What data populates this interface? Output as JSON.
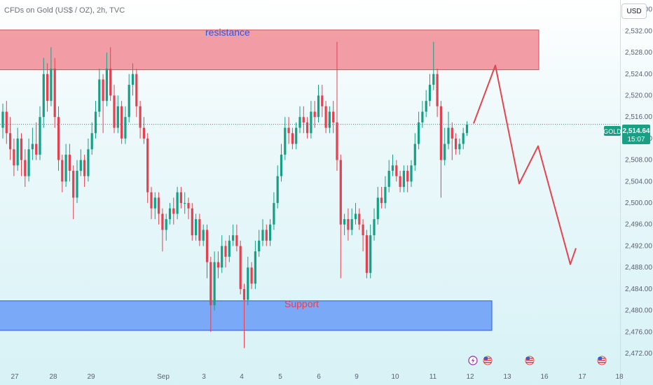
{
  "header": {
    "title": "CFDs on Gold (US$ / OZ), 2h, TVC",
    "currency": "USD"
  },
  "price_tag": {
    "symbol": "GOLD",
    "price": "2,514.64",
    "countdown": "15:07"
  },
  "y_axis": {
    "labels": [
      "2,536.00",
      "2,532.00",
      "2,528.00",
      "2,524.00",
      "2,520.00",
      "2,516.00",
      "2,512.00",
      "2,508.00",
      "2,504.00",
      "2,500.00",
      "2,496.00",
      "2,492.00",
      "2,488.00",
      "2,484.00",
      "2,480.00",
      "2,476.00",
      "2,472.00"
    ]
  },
  "x_axis": {
    "labels": [
      "27",
      "28",
      "29",
      "Sep",
      "3",
      "4",
      "5",
      "6",
      "9",
      "10",
      "11",
      "12",
      "13",
      "16",
      "17",
      "18"
    ]
  },
  "zones": {
    "resistance_label": "resistance",
    "support_label": "Support"
  },
  "colors": {
    "up": "#14a085",
    "down": "#e5404f",
    "resistance_fill": "#f18c95",
    "support_fill": "#6fa1f6",
    "projection": "#e5434d",
    "resistance_text": "#2e56e0",
    "support_text": "#e5404f"
  },
  "icons": [
    "lightning-event-icon",
    "us-flag-event-icon",
    "us-flag-event-icon",
    "us-flag-event-icon"
  ],
  "chart_data": {
    "type": "candlestick",
    "ylim": [
      2470,
      2540
    ],
    "resistance_zone": [
      2524.8,
      2532.2
    ],
    "support_zone": [
      2476.3,
      2481.8
    ],
    "current_price": 2514.64,
    "projection": [
      2514.8,
      2525.6,
      2503.6,
      2510.6,
      2488.6,
      2491.6
    ],
    "candles": [
      [
        2514.0,
        2517.0,
        2518.5,
        2512.0
      ],
      [
        2517.0,
        2513.0,
        2519.0,
        2511.0
      ],
      [
        2513.0,
        2510.0,
        2516.0,
        2508.0
      ],
      [
        2510.0,
        2507.0,
        2512.0,
        2505.0
      ],
      [
        2507.0,
        2512.0,
        2514.0,
        2506.0
      ],
      [
        2512.0,
        2508.0,
        2513.0,
        2505.0
      ],
      [
        2508.0,
        2505.0,
        2510.0,
        2503.0
      ],
      [
        2505.0,
        2510.0,
        2512.0,
        2504.0
      ],
      [
        2510.0,
        2511.0,
        2514.0,
        2508.0
      ],
      [
        2511.0,
        2509.0,
        2515.0,
        2508.0
      ],
      [
        2509.0,
        2516.0,
        2518.0,
        2508.0
      ],
      [
        2516.0,
        2524.0,
        2527.0,
        2514.0
      ],
      [
        2524.0,
        2519.0,
        2526.0,
        2517.0
      ],
      [
        2519.0,
        2525.0,
        2529.0,
        2518.0
      ],
      [
        2525.0,
        2516.0,
        2527.0,
        2514.0
      ],
      [
        2516.0,
        2508.0,
        2518.0,
        2506.0
      ],
      [
        2508.0,
        2504.0,
        2509.0,
        2502.0
      ],
      [
        2504.0,
        2509.0,
        2511.0,
        2503.0
      ],
      [
        2509.0,
        2506.0,
        2511.0,
        2504.0
      ],
      [
        2506.0,
        2501.0,
        2507.0,
        2497.0
      ],
      [
        2501.0,
        2506.0,
        2508.0,
        2500.0
      ],
      [
        2506.0,
        2508.0,
        2510.0,
        2505.0
      ],
      [
        2508.0,
        2505.0,
        2509.0,
        2503.0
      ],
      [
        2505.0,
        2510.0,
        2512.0,
        2504.0
      ],
      [
        2510.0,
        2513.0,
        2515.0,
        2509.0
      ],
      [
        2513.0,
        2517.0,
        2519.0,
        2512.0
      ],
      [
        2517.0,
        2523.0,
        2525.0,
        2516.0
      ],
      [
        2523.0,
        2519.0,
        2524.0,
        2513.0
      ],
      [
        2519.0,
        2525.0,
        2528.0,
        2518.0
      ],
      [
        2525.0,
        2520.0,
        2529.0,
        2519.0
      ],
      [
        2520.0,
        2514.0,
        2522.0,
        2513.0
      ],
      [
        2514.0,
        2518.0,
        2520.0,
        2513.0
      ],
      [
        2518.0,
        2512.0,
        2519.0,
        2511.0
      ],
      [
        2512.0,
        2516.0,
        2518.0,
        2511.0
      ],
      [
        2516.0,
        2522.0,
        2524.0,
        2515.0
      ],
      [
        2522.0,
        2524.0,
        2526.0,
        2520.0
      ],
      [
        2524.0,
        2518.0,
        2525.0,
        2516.0
      ],
      [
        2518.0,
        2514.0,
        2519.0,
        2512.0
      ],
      [
        2514.0,
        2512.0,
        2516.0,
        2511.0
      ],
      [
        2512.0,
        2502.0,
        2513.0,
        2500.0
      ],
      [
        2502.0,
        2499.0,
        2503.0,
        2497.0
      ],
      [
        2499.0,
        2501.0,
        2502.0,
        2497.0
      ],
      [
        2501.0,
        2498.0,
        2502.0,
        2496.0
      ],
      [
        2498.0,
        2495.0,
        2499.0,
        2491.0
      ],
      [
        2495.0,
        2497.0,
        2498.0,
        2493.0
      ],
      [
        2497.0,
        2499.0,
        2500.0,
        2496.0
      ],
      [
        2499.0,
        2498.0,
        2501.0,
        2496.0
      ],
      [
        2498.0,
        2502.0,
        2503.0,
        2497.0
      ],
      [
        2502.0,
        2500.0,
        2503.0,
        2499.0
      ],
      [
        2500.0,
        2500.0,
        2502.0,
        2498.0
      ],
      [
        2500.0,
        2499.0,
        2501.0,
        2497.0
      ],
      [
        2499.0,
        2494.0,
        2500.0,
        2493.0
      ],
      [
        2494.0,
        2497.0,
        2498.0,
        2493.0
      ],
      [
        2497.0,
        2493.0,
        2498.0,
        2492.0
      ],
      [
        2493.0,
        2495.0,
        2496.0,
        2492.0
      ],
      [
        2495.0,
        2489.0,
        2496.0,
        2486.0
      ],
      [
        2489.0,
        2481.0,
        2490.0,
        2476.0
      ],
      [
        2481.0,
        2489.0,
        2491.0,
        2480.0
      ],
      [
        2489.0,
        2488.0,
        2491.0,
        2486.0
      ],
      [
        2488.0,
        2492.0,
        2494.0,
        2487.0
      ],
      [
        2492.0,
        2490.0,
        2493.0,
        2488.0
      ],
      [
        2490.0,
        2493.0,
        2494.0,
        2489.0
      ],
      [
        2493.0,
        2494.0,
        2496.0,
        2492.0
      ],
      [
        2494.0,
        2492.0,
        2496.0,
        2491.0
      ],
      [
        2492.0,
        2484.0,
        2493.0,
        2483.0
      ],
      [
        2484.0,
        2482.0,
        2485.0,
        2473.0
      ],
      [
        2482.0,
        2488.0,
        2490.0,
        2481.0
      ],
      [
        2488.0,
        2485.0,
        2489.0,
        2484.0
      ],
      [
        2485.0,
        2491.0,
        2493.0,
        2484.0
      ],
      [
        2491.0,
        2493.0,
        2495.0,
        2490.0
      ],
      [
        2493.0,
        2495.0,
        2497.0,
        2492.0
      ],
      [
        2495.0,
        2493.0,
        2496.0,
        2492.0
      ],
      [
        2493.0,
        2496.0,
        2497.0,
        2492.0
      ],
      [
        2496.0,
        2500.0,
        2502.0,
        2495.0
      ],
      [
        2500.0,
        2505.0,
        2507.0,
        2499.0
      ],
      [
        2505.0,
        2509.0,
        2511.0,
        2504.0
      ],
      [
        2509.0,
        2514.0,
        2516.0,
        2508.0
      ],
      [
        2514.0,
        2513.0,
        2516.0,
        2511.0
      ],
      [
        2513.0,
        2511.0,
        2514.0,
        2510.0
      ],
      [
        2511.0,
        2514.0,
        2515.0,
        2510.0
      ],
      [
        2514.0,
        2516.0,
        2518.0,
        2513.0
      ],
      [
        2516.0,
        2515.0,
        2518.0,
        2513.0
      ],
      [
        2515.0,
        2513.0,
        2516.0,
        2512.0
      ],
      [
        2513.0,
        2517.0,
        2519.0,
        2512.0
      ],
      [
        2517.0,
        2516.0,
        2519.0,
        2514.0
      ],
      [
        2516.0,
        2520.0,
        2522.0,
        2515.0
      ],
      [
        2520.0,
        2518.0,
        2522.0,
        2516.0
      ],
      [
        2518.0,
        2514.0,
        2519.0,
        2513.0
      ],
      [
        2514.0,
        2517.0,
        2518.0,
        2513.0
      ],
      [
        2517.0,
        2515.0,
        2519.0,
        2513.0
      ],
      [
        2515.0,
        2508.0,
        2530.0,
        2506.0
      ],
      [
        2508.0,
        2496.0,
        2509.0,
        2486.0
      ],
      [
        2496.0,
        2497.0,
        2498.0,
        2494.0
      ],
      [
        2497.0,
        2495.0,
        2499.0,
        2493.0
      ],
      [
        2495.0,
        2497.0,
        2499.0,
        2494.0
      ],
      [
        2497.0,
        2498.0,
        2500.0,
        2496.0
      ],
      [
        2498.0,
        2496.0,
        2499.0,
        2495.0
      ],
      [
        2496.0,
        2494.0,
        2497.0,
        2491.0
      ],
      [
        2494.0,
        2487.0,
        2495.0,
        2486.0
      ],
      [
        2487.0,
        2494.0,
        2496.0,
        2486.0
      ],
      [
        2494.0,
        2497.0,
        2499.0,
        2493.0
      ],
      [
        2497.0,
        2501.0,
        2503.0,
        2496.0
      ],
      [
        2501.0,
        2500.0,
        2503.0,
        2499.0
      ],
      [
        2500.0,
        2503.0,
        2505.0,
        2499.0
      ],
      [
        2503.0,
        2506.0,
        2508.0,
        2502.0
      ],
      [
        2506.0,
        2507.0,
        2509.0,
        2505.0
      ],
      [
        2507.0,
        2505.0,
        2508.0,
        2504.0
      ],
      [
        2505.0,
        2503.0,
        2506.0,
        2502.0
      ],
      [
        2503.0,
        2506.0,
        2507.0,
        2502.0
      ],
      [
        2506.0,
        2504.0,
        2507.0,
        2502.0
      ],
      [
        2504.0,
        2507.0,
        2508.0,
        2503.0
      ],
      [
        2507.0,
        2511.0,
        2513.0,
        2506.0
      ],
      [
        2511.0,
        2515.0,
        2517.0,
        2510.0
      ],
      [
        2515.0,
        2517.0,
        2519.0,
        2514.0
      ],
      [
        2517.0,
        2519.0,
        2521.0,
        2516.0
      ],
      [
        2519.0,
        2522.0,
        2524.0,
        2518.0
      ],
      [
        2522.0,
        2524.0,
        2530.0,
        2521.0
      ],
      [
        2524.0,
        2518.0,
        2525.0,
        2516.0
      ],
      [
        2518.0,
        2508.0,
        2519.0,
        2501.0
      ],
      [
        2508.0,
        2511.0,
        2514.0,
        2507.0
      ],
      [
        2511.0,
        2514.0,
        2517.0,
        2510.0
      ],
      [
        2514.0,
        2512.0,
        2515.0,
        2508.0
      ],
      [
        2512.0,
        2510.0,
        2513.0,
        2509.0
      ],
      [
        2510.0,
        2511.0,
        2512.0,
        2509.0
      ],
      [
        2511.0,
        2513.0,
        2514.0,
        2510.0
      ],
      [
        2513.0,
        2514.6,
        2515.2,
        2512.5
      ]
    ]
  }
}
